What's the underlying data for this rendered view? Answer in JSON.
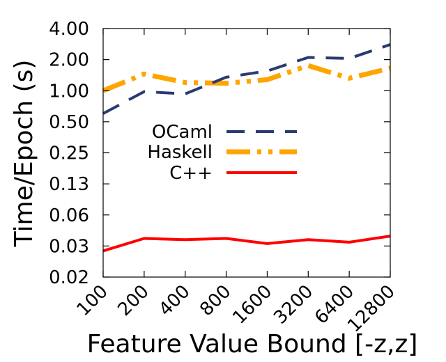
{
  "chart_data": {
    "type": "line",
    "title": "",
    "xlabel": "Feature Value Bound [-z,z]",
    "ylabel": "Time/Epoch (s)",
    "categories": [
      "100",
      "200",
      "400",
      "800",
      "1600",
      "3200",
      "6400",
      "12800"
    ],
    "y_scale": "log",
    "ylim": [
      0.02,
      4.0
    ],
    "y_ticks": [
      {
        "value": 4.0,
        "label": "4.00"
      },
      {
        "value": 2.0,
        "label": "2.00"
      },
      {
        "value": 1.0,
        "label": "1.00"
      },
      {
        "value": 0.5,
        "label": "0.50"
      },
      {
        "value": 0.25,
        "label": "0.25"
      },
      {
        "value": 0.125,
        "label": "0.13"
      },
      {
        "value": 0.0625,
        "label": "0.06"
      },
      {
        "value": 0.03125,
        "label": "0.03"
      },
      {
        "value": 0.015625,
        "label": "0.02"
      }
    ],
    "grid": false,
    "legend_position": "center-left",
    "series": [
      {
        "name": "OCaml",
        "color": "#2b3a73",
        "dash": "dashed",
        "values": [
          0.6,
          0.98,
          0.93,
          1.35,
          1.55,
          2.1,
          2.05,
          2.8
        ]
      },
      {
        "name": "Haskell",
        "color": "#ffa500",
        "dash": "dash-dot-dot",
        "values": [
          1.0,
          1.45,
          1.2,
          1.18,
          1.28,
          1.75,
          1.32,
          1.65
        ]
      },
      {
        "name": "C++",
        "color": "#ff0000",
        "dash": "solid",
        "values": [
          0.028,
          0.037,
          0.036,
          0.037,
          0.033,
          0.036,
          0.034,
          0.039
        ]
      }
    ]
  }
}
